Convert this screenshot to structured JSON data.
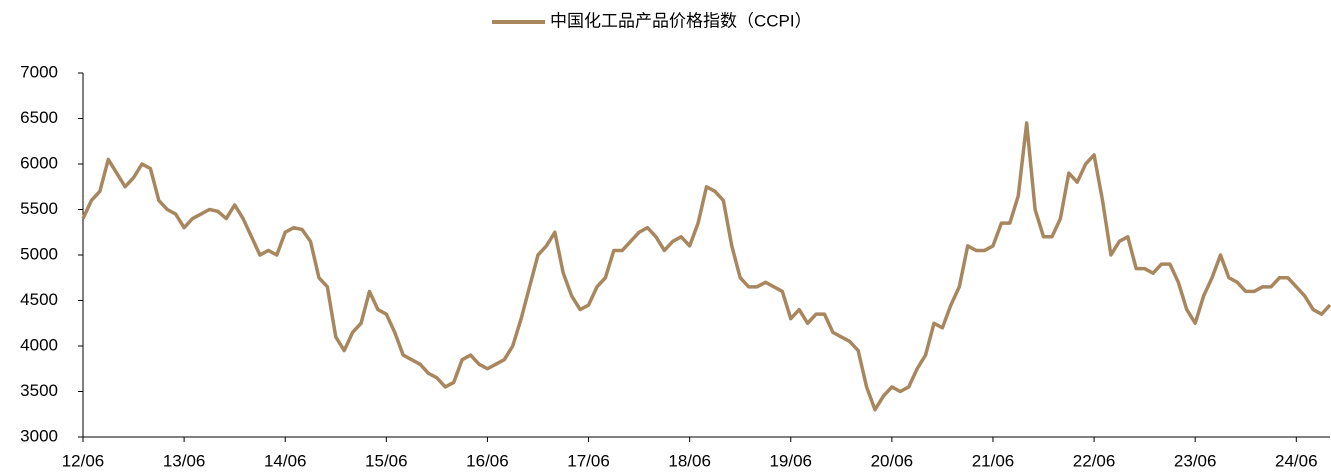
{
  "chart_data": {
    "type": "line",
    "categories": [
      "12/06",
      null,
      null,
      null,
      null,
      null,
      null,
      null,
      null,
      null,
      null,
      null,
      "13/06",
      null,
      null,
      null,
      null,
      null,
      null,
      null,
      null,
      null,
      null,
      null,
      "14/06",
      null,
      null,
      null,
      null,
      null,
      null,
      null,
      null,
      null,
      null,
      null,
      "15/06",
      null,
      null,
      null,
      null,
      null,
      null,
      null,
      null,
      null,
      null,
      null,
      "16/06",
      null,
      null,
      null,
      null,
      null,
      null,
      null,
      null,
      null,
      null,
      null,
      "17/06",
      null,
      null,
      null,
      null,
      null,
      null,
      null,
      null,
      null,
      null,
      null,
      "18/06",
      null,
      null,
      null,
      null,
      null,
      null,
      null,
      null,
      null,
      null,
      null,
      "19/06",
      null,
      null,
      null,
      null,
      null,
      null,
      null,
      null,
      null,
      null,
      null,
      "20/06",
      null,
      null,
      null,
      null,
      null,
      null,
      null,
      null,
      null,
      null,
      null,
      "21/06",
      null,
      null,
      null,
      null,
      null,
      null,
      null,
      null,
      null,
      null,
      null,
      "22/06",
      null,
      null,
      null,
      null,
      null,
      null,
      null,
      null,
      null,
      null,
      null,
      "23/06",
      null,
      null,
      null,
      null,
      null,
      null,
      null,
      null,
      null,
      null,
      null,
      "24/06",
      null,
      null,
      null,
      null
    ],
    "series": [
      {
        "name": "中国化工品产品价格指数（CCPI）",
        "color": "#a8875e",
        "values": [
          5400,
          5600,
          5700,
          6050,
          5900,
          5750,
          5850,
          6000,
          5950,
          5600,
          5500,
          5450,
          5300,
          5400,
          5450,
          5500,
          5480,
          5400,
          5550,
          5400,
          5200,
          5000,
          5050,
          5000,
          5250,
          5300,
          5280,
          5150,
          4750,
          4650,
          4100,
          3950,
          4150,
          4250,
          4600,
          4400,
          4350,
          4150,
          3900,
          3850,
          3800,
          3700,
          3650,
          3550,
          3600,
          3850,
          3900,
          3800,
          3750,
          3800,
          3850,
          4000,
          4300,
          4650,
          5000,
          5100,
          5250,
          4800,
          4550,
          4400,
          4450,
          4650,
          4750,
          5050,
          5050,
          5150,
          5250,
          5300,
          5200,
          5050,
          5150,
          5200,
          5100,
          5350,
          5750,
          5700,
          5600,
          5100,
          4750,
          4650,
          4650,
          4700,
          4650,
          4600,
          4300,
          4400,
          4250,
          4350,
          4350,
          4150,
          4100,
          4050,
          3950,
          3550,
          3300,
          3450,
          3550,
          3500,
          3550,
          3750,
          3900,
          4250,
          4200,
          4450,
          4650,
          5100,
          5050,
          5050,
          5100,
          5350,
          5350,
          5650,
          6450,
          5500,
          5200,
          5200,
          5400,
          5900,
          5800,
          6000,
          6100,
          5600,
          5000,
          5150,
          5200,
          4850,
          4850,
          4800,
          4900,
          4900,
          4700,
          4400,
          4250,
          4550,
          4750,
          5000,
          4750,
          4700,
          4600,
          4600,
          4650,
          4650,
          4750,
          4750,
          4650,
          4550,
          4400,
          4350,
          4450
        ]
      }
    ],
    "ylim": [
      3000,
      7000
    ],
    "yticks": [
      3000,
      3500,
      4000,
      4500,
      5000,
      5500,
      6000,
      6500,
      7000
    ],
    "legend": "top"
  }
}
